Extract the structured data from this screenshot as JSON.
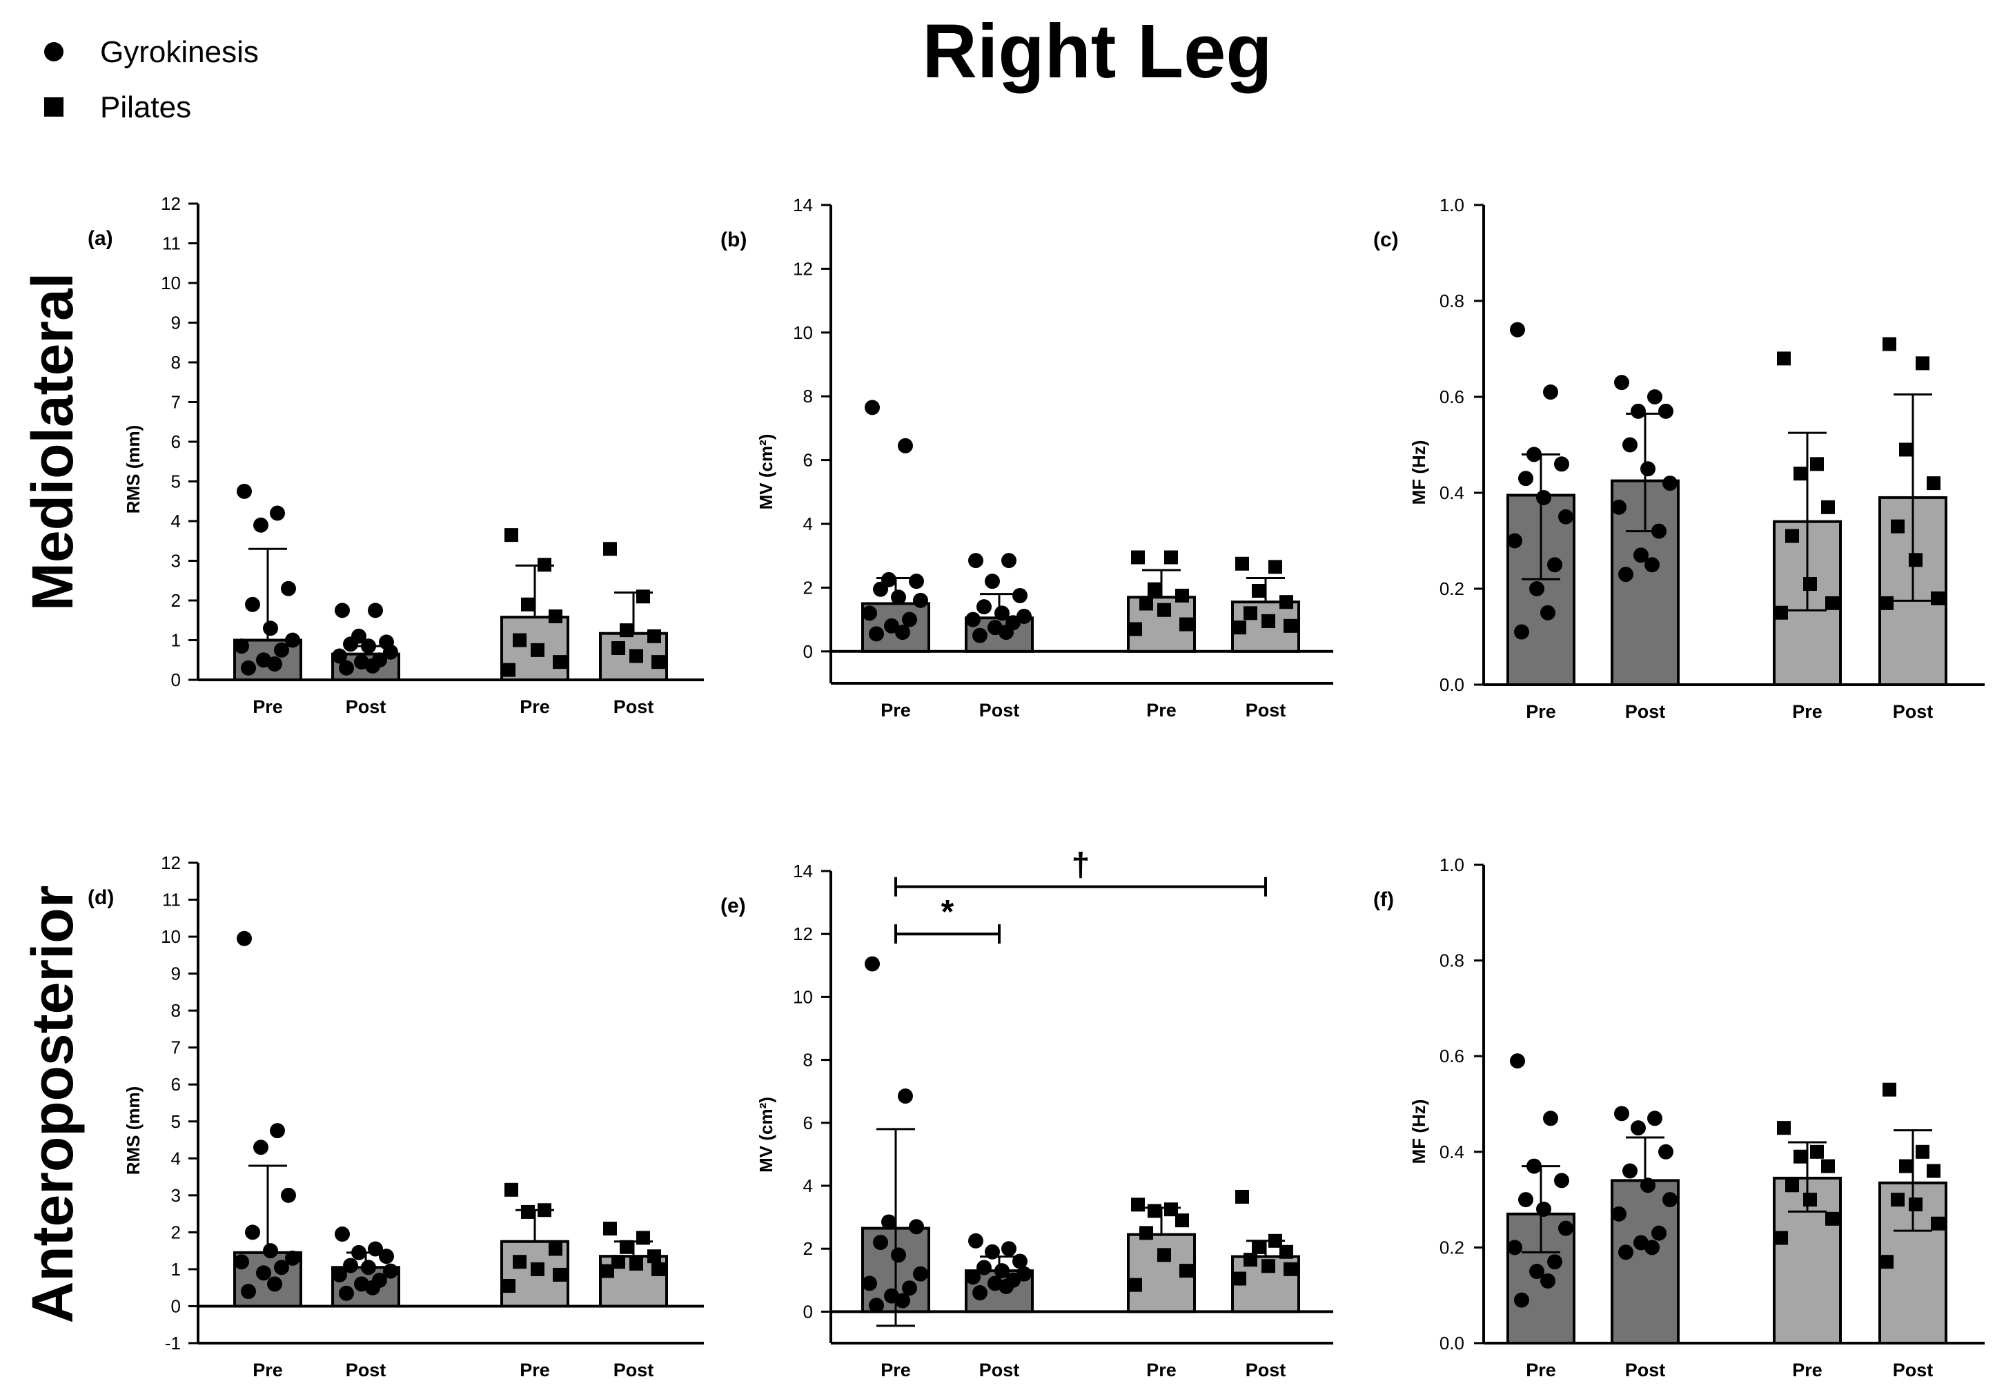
{
  "figure": {
    "title": "Right Leg",
    "row_labels": [
      "Mediolateral",
      "Anteroposterior"
    ],
    "legend": {
      "placement": "top-left",
      "entries": [
        {
          "label": "Gyrokinesis",
          "marker": "circle"
        },
        {
          "label": "Pilates",
          "marker": "square"
        }
      ]
    },
    "colors": {
      "gyro_bar": "#737373",
      "pilates_bar": "#a6a6a6",
      "ink": "#000000"
    }
  },
  "chart_data": [
    {
      "type": "bar",
      "panel_label": "(a)",
      "ylabel": "RMS (mm)",
      "ylim": [
        0,
        12
      ],
      "yticks": [
        "0",
        "1",
        "2",
        "3",
        "4",
        "5",
        "6",
        "7",
        "8",
        "9",
        "10",
        "11",
        "12"
      ],
      "categories": [
        "Pre",
        "Post",
        "Pre",
        "Post"
      ],
      "series": [
        {
          "name": "Gyrokinesis",
          "marker": "circle",
          "means": [
            1.0,
            0.65
          ],
          "sd_upper": [
            3.3,
            0.85
          ],
          "points": [
            [
              4.75,
              4.2,
              3.9,
              2.3,
              1.9,
              1.3,
              1.0,
              0.85,
              0.75,
              0.5,
              0.4,
              0.3
            ],
            [
              1.75,
              1.75,
              1.1,
              0.95,
              0.9,
              0.85,
              0.7,
              0.6,
              0.5,
              0.45,
              0.35,
              0.3
            ]
          ]
        },
        {
          "name": "Pilates",
          "marker": "square",
          "means": [
            1.58,
            1.17
          ],
          "sd_upper": [
            2.88,
            2.2
          ],
          "points": [
            [
              3.65,
              2.9,
              1.9,
              1.6,
              1.0,
              0.75,
              0.45,
              0.25
            ],
            [
              3.3,
              2.1,
              1.25,
              1.1,
              0.8,
              0.6,
              0.45
            ]
          ]
        }
      ]
    },
    {
      "type": "bar",
      "panel_label": "(b)",
      "ylabel": "MV (cm²)",
      "ylim": [
        -1,
        14
      ],
      "yticks": [
        "0",
        "2",
        "4",
        "6",
        "8",
        "10",
        "12",
        "14"
      ],
      "categories": [
        "Pre",
        "Post",
        "Pre",
        "Post"
      ],
      "series": [
        {
          "name": "Gyrokinesis",
          "marker": "circle",
          "means": [
            1.5,
            1.05
          ],
          "sd_upper": [
            2.3,
            1.8
          ],
          "points": [
            [
              7.65,
              6.45,
              2.25,
              2.2,
              1.95,
              1.7,
              1.6,
              1.2,
              1.0,
              0.8,
              0.6,
              0.55
            ],
            [
              2.85,
              2.85,
              2.2,
              1.75,
              1.4,
              1.2,
              1.1,
              1.0,
              0.9,
              0.75,
              0.6,
              0.5
            ]
          ]
        },
        {
          "name": "Pilates",
          "marker": "square",
          "means": [
            1.7,
            1.55
          ],
          "sd_upper": [
            2.55,
            2.3
          ],
          "points": [
            [
              2.95,
              2.95,
              1.95,
              1.75,
              1.5,
              1.3,
              0.85,
              0.7
            ],
            [
              2.75,
              2.65,
              1.9,
              1.55,
              1.2,
              0.95,
              0.8,
              0.75
            ]
          ]
        }
      ]
    },
    {
      "type": "bar",
      "panel_label": "(c)",
      "ylabel": "MF (Hz)",
      "ylim": [
        0,
        1.0
      ],
      "yticks": [
        "0.0",
        "0.2",
        "0.4",
        "0.6",
        "0.8",
        "1.0"
      ],
      "categories": [
        "Pre",
        "Post",
        "Pre",
        "Post"
      ],
      "series": [
        {
          "name": "Gyrokinesis",
          "marker": "circle",
          "means": [
            0.395,
            0.425
          ],
          "sd_upper": [
            0.48,
            0.565
          ],
          "sd_lower": [
            0.22,
            0.32
          ],
          "points": [
            [
              0.74,
              0.61,
              0.48,
              0.46,
              0.43,
              0.39,
              0.35,
              0.3,
              0.25,
              0.2,
              0.15,
              0.11
            ],
            [
              0.63,
              0.6,
              0.57,
              0.57,
              0.5,
              0.45,
              0.42,
              0.37,
              0.32,
              0.27,
              0.25,
              0.23
            ]
          ]
        },
        {
          "name": "Pilates",
          "marker": "square",
          "means": [
            0.34,
            0.39
          ],
          "sd_upper": [
            0.525,
            0.605
          ],
          "sd_lower": [
            0.155,
            0.175
          ],
          "points": [
            [
              0.68,
              0.46,
              0.44,
              0.37,
              0.31,
              0.21,
              0.17,
              0.15
            ],
            [
              0.71,
              0.67,
              0.49,
              0.42,
              0.33,
              0.26,
              0.18,
              0.17
            ]
          ]
        }
      ]
    },
    {
      "type": "bar",
      "panel_label": "(d)",
      "ylabel": "RMS (mm)",
      "ylim": [
        -1,
        12
      ],
      "yticks": [
        "-1",
        "0",
        "1",
        "2",
        "3",
        "4",
        "5",
        "6",
        "7",
        "8",
        "9",
        "10",
        "11",
        "12"
      ],
      "categories": [
        "Pre",
        "Post",
        "Pre",
        "Post"
      ],
      "series": [
        {
          "name": "Gyrokinesis",
          "marker": "circle",
          "means": [
            1.45,
            1.05
          ],
          "sd_upper": [
            3.8,
            1.45
          ],
          "points": [
            [
              9.95,
              4.75,
              4.3,
              3.0,
              2.0,
              1.5,
              1.3,
              1.2,
              1.05,
              0.9,
              0.6,
              0.4
            ],
            [
              1.95,
              1.55,
              1.45,
              1.35,
              1.1,
              1.05,
              0.95,
              0.85,
              0.7,
              0.6,
              0.5,
              0.35
            ]
          ]
        },
        {
          "name": "Pilates",
          "marker": "square",
          "means": [
            1.75,
            1.35
          ],
          "sd_upper": [
            2.6,
            1.75
          ],
          "points": [
            [
              3.15,
              2.6,
              2.55,
              1.55,
              1.2,
              1.0,
              0.85,
              0.55
            ],
            [
              2.1,
              1.85,
              1.6,
              1.35,
              1.2,
              1.15,
              1.0,
              0.95
            ]
          ]
        }
      ]
    },
    {
      "type": "bar",
      "panel_label": "(e)",
      "ylabel": "MV (cm²)",
      "ylim": [
        -1,
        14
      ],
      "yticks": [
        "0",
        "2",
        "4",
        "6",
        "8",
        "10",
        "12",
        "14"
      ],
      "categories": [
        "Pre",
        "Post",
        "Pre",
        "Post"
      ],
      "series": [
        {
          "name": "Gyrokinesis",
          "marker": "circle",
          "means": [
            2.65,
            1.3
          ],
          "sd_upper": [
            5.8,
            1.75
          ],
          "sd_lower": [
            -0.45,
            null
          ],
          "points": [
            [
              11.05,
              6.85,
              2.85,
              2.7,
              2.2,
              1.8,
              1.2,
              0.9,
              0.75,
              0.5,
              0.35,
              0.2
            ],
            [
              2.25,
              2.0,
              1.9,
              1.6,
              1.4,
              1.3,
              1.2,
              1.1,
              1.0,
              0.9,
              0.8,
              0.6
            ]
          ]
        },
        {
          "name": "Pilates",
          "marker": "square",
          "means": [
            2.45,
            1.75
          ],
          "sd_upper": [
            3.3,
            2.25
          ],
          "points": [
            [
              3.4,
              3.25,
              3.2,
              2.9,
              2.5,
              1.8,
              1.3,
              0.85
            ],
            [
              3.65,
              2.25,
              2.05,
              1.9,
              1.65,
              1.45,
              1.35,
              1.05
            ]
          ]
        }
      ],
      "annotations": [
        {
          "text": "*",
          "from_bar": 0,
          "to_bar": 1,
          "y": 12.0
        },
        {
          "text": "†",
          "from_bar": 0,
          "to_bar": 3,
          "y": 13.5
        }
      ]
    },
    {
      "type": "bar",
      "panel_label": "(f)",
      "ylabel": "MF (Hz)",
      "ylim": [
        0,
        1.0
      ],
      "yticks": [
        "0.0",
        "0.2",
        "0.4",
        "0.6",
        "0.8",
        "1.0"
      ],
      "categories": [
        "Pre",
        "Post",
        "Pre",
        "Post"
      ],
      "series": [
        {
          "name": "Gyrokinesis",
          "marker": "circle",
          "means": [
            0.27,
            0.34
          ],
          "sd_upper": [
            0.37,
            0.43
          ],
          "sd_lower": [
            0.19,
            null
          ],
          "points": [
            [
              0.59,
              0.47,
              0.37,
              0.34,
              0.3,
              0.28,
              0.24,
              0.2,
              0.17,
              0.15,
              0.13,
              0.09
            ],
            [
              0.48,
              0.47,
              0.45,
              0.4,
              0.36,
              0.33,
              0.3,
              0.27,
              0.23,
              0.21,
              0.2,
              0.19
            ]
          ]
        },
        {
          "name": "Pilates",
          "marker": "square",
          "means": [
            0.345,
            0.335
          ],
          "sd_upper": [
            0.42,
            0.445
          ],
          "sd_lower": [
            0.275,
            0.235
          ],
          "points": [
            [
              0.45,
              0.4,
              0.39,
              0.37,
              0.33,
              0.3,
              0.26,
              0.22
            ],
            [
              0.53,
              0.4,
              0.37,
              0.36,
              0.3,
              0.29,
              0.25,
              0.17
            ]
          ]
        }
      ]
    }
  ]
}
